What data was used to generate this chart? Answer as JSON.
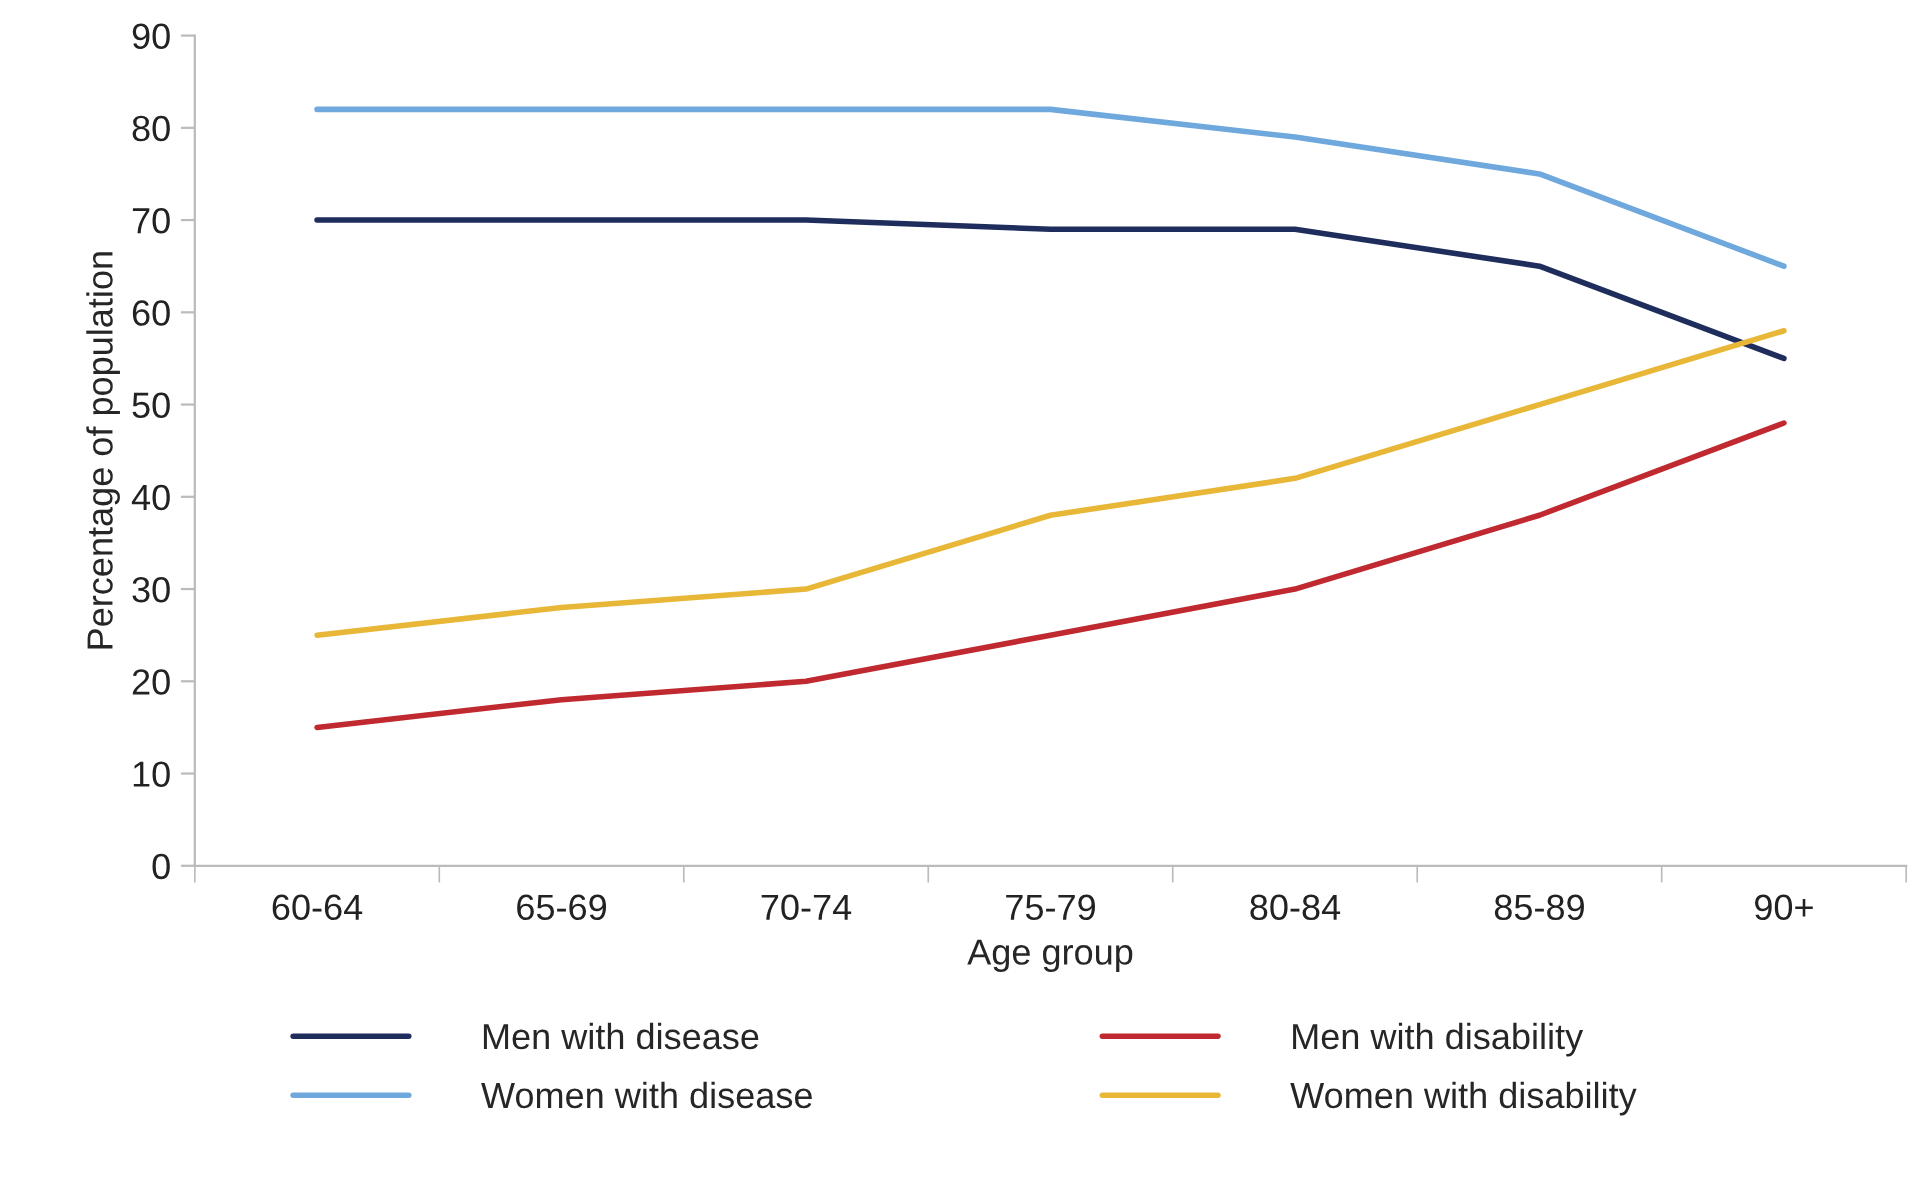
{
  "chart_data": {
    "type": "line",
    "xlabel": "Age group",
    "ylabel": "Percentage of population",
    "categories": [
      "60-64",
      "65-69",
      "70-74",
      "75-79",
      "80-84",
      "85-89",
      "90+"
    ],
    "series": [
      {
        "name": "Men with disease",
        "color": "#1f2d5c",
        "values": [
          70,
          70,
          70,
          69,
          69,
          65,
          55
        ]
      },
      {
        "name": "Men with disability",
        "color": "#c0292f",
        "values": [
          15,
          18,
          20,
          25,
          30,
          38,
          48
        ]
      },
      {
        "name": "Women with disease",
        "color": "#6fa8dc",
        "values": [
          82,
          82,
          82,
          82,
          79,
          75,
          65
        ]
      },
      {
        "name": "Women with disability",
        "color": "#e8b737",
        "values": [
          25,
          28,
          30,
          38,
          42,
          50,
          58
        ]
      }
    ],
    "ylim": [
      0,
      90
    ],
    "yticks": [
      0,
      10,
      20,
      30,
      40,
      50,
      60,
      70,
      80,
      90
    ],
    "legend": "bottom",
    "grid": false,
    "marker": "none",
    "line_style": "solid"
  }
}
